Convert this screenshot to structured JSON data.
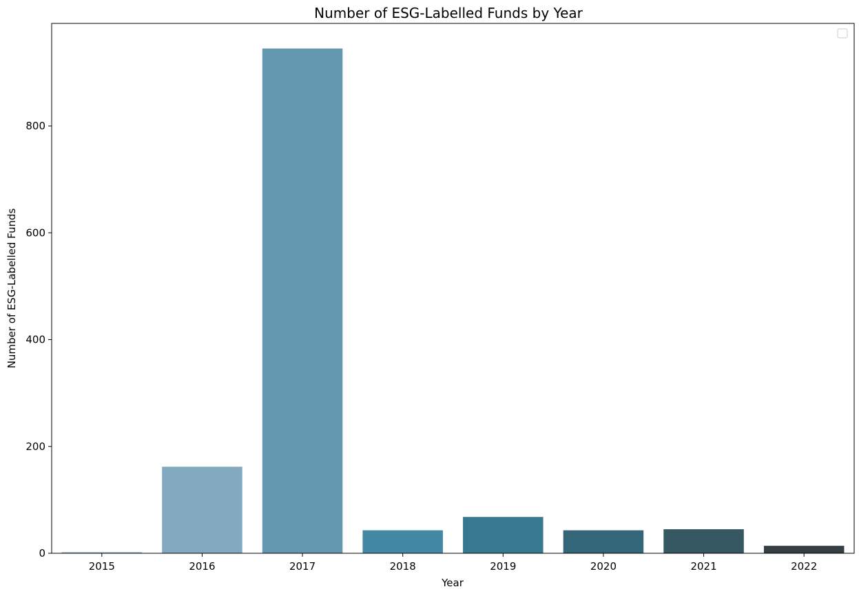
{
  "chart_data": {
    "type": "bar",
    "title": "Number of ESG-Labelled Funds by Year",
    "xlabel": "Year",
    "ylabel": "Number of ESG-Labelled Funds",
    "categories": [
      "2015",
      "2016",
      "2017",
      "2018",
      "2019",
      "2020",
      "2021",
      "2022"
    ],
    "values": [
      2,
      162,
      945,
      43,
      68,
      43,
      45,
      14
    ],
    "ylim": [
      0,
      992
    ],
    "yticks": [
      0,
      200,
      400,
      600,
      800
    ],
    "ytick_labels": [
      "0",
      "200",
      "400",
      "600",
      "800"
    ],
    "bar_colors": [
      "#8fb3c9",
      "#82a9bf",
      "#6399b0",
      "#4389a5",
      "#377a8f",
      "#346679",
      "#355862",
      "#343e43"
    ],
    "grid": false,
    "legend": {
      "placement": "top-right",
      "entries": []
    }
  }
}
